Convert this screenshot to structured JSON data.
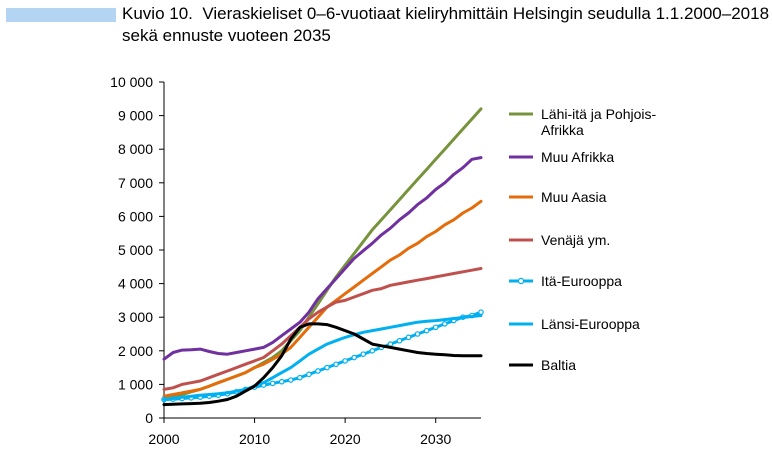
{
  "figure": {
    "label": "Kuvio 10.",
    "title": "Vieraskieliset 0–6-vuotiaat kieliryhmittäin Helsingin seudulla 1.1.2000–2018 sekä ennuste vuoteen 2035",
    "accent_color": "#b3d4f2"
  },
  "chart_data": {
    "type": "line",
    "title": "Vieraskieliset 0–6-vuotiaat kieliryhmittäin Helsingin seudulla 1.1.2000–2018 sekä ennuste vuoteen 2035",
    "xlabel": "",
    "ylabel": "",
    "xlim": [
      2000,
      2035
    ],
    "ylim": [
      0,
      10000
    ],
    "x_ticks": [
      2000,
      2010,
      2020,
      2030
    ],
    "x_tick_labels": [
      "2000",
      "2010",
      "2020",
      "2030"
    ],
    "y_ticks": [
      0,
      1000,
      2000,
      3000,
      4000,
      5000,
      6000,
      7000,
      8000,
      9000,
      10000
    ],
    "y_tick_labels": [
      "0",
      "1 000",
      "2 000",
      "3 000",
      "4 000",
      "5 000",
      "6 000",
      "7 000",
      "8 000",
      "9 000",
      "10 000"
    ],
    "grid": false,
    "legend_position": "right",
    "x": [
      2000,
      2001,
      2002,
      2003,
      2004,
      2005,
      2006,
      2007,
      2008,
      2009,
      2010,
      2011,
      2012,
      2013,
      2014,
      2015,
      2016,
      2017,
      2018,
      2019,
      2020,
      2021,
      2022,
      2023,
      2024,
      2025,
      2026,
      2027,
      2028,
      2029,
      2030,
      2031,
      2032,
      2033,
      2034,
      2035
    ],
    "series": [
      {
        "name": "Lähi-itä ja Pohjois-Afrikka",
        "label_lines": [
          "Lähi-itä ja Pohjois-",
          "Afrikka"
        ],
        "color": "#77933c",
        "marker": "none",
        "values": [
          600,
          650,
          700,
          780,
          850,
          950,
          1050,
          1150,
          1250,
          1350,
          1500,
          1650,
          1800,
          2000,
          2300,
          2600,
          3000,
          3400,
          3800,
          4200,
          4550,
          4900,
          5250,
          5600,
          5900,
          6200,
          6500,
          6800,
          7100,
          7400,
          7700,
          8000,
          8300,
          8600,
          8900,
          9200
        ]
      },
      {
        "name": "Muu Afrikka",
        "color": "#7030a0",
        "marker": "none",
        "values": [
          1750,
          1950,
          2020,
          2030,
          2050,
          1980,
          1920,
          1900,
          1950,
          2000,
          2050,
          2100,
          2250,
          2450,
          2650,
          2850,
          3150,
          3550,
          3850,
          4150,
          4450,
          4750,
          4980,
          5200,
          5450,
          5650,
          5900,
          6100,
          6350,
          6550,
          6800,
          7000,
          7250,
          7450,
          7700,
          7750
        ]
      },
      {
        "name": "Muu Aasia",
        "color": "#e46c0a",
        "marker": "none",
        "values": [
          650,
          700,
          750,
          800,
          850,
          950,
          1050,
          1150,
          1250,
          1350,
          1500,
          1600,
          1750,
          1900,
          2100,
          2400,
          2700,
          3000,
          3300,
          3500,
          3700,
          3900,
          4100,
          4300,
          4500,
          4700,
          4850,
          5050,
          5200,
          5400,
          5550,
          5750,
          5900,
          6100,
          6250,
          6450
        ]
      },
      {
        "name": "Venäjä ym.",
        "color": "#c0504d",
        "marker": "none",
        "values": [
          850,
          900,
          1000,
          1050,
          1100,
          1200,
          1300,
          1400,
          1500,
          1600,
          1700,
          1800,
          2000,
          2200,
          2450,
          2700,
          2950,
          3150,
          3300,
          3450,
          3500,
          3600,
          3700,
          3800,
          3850,
          3950,
          4000,
          4050,
          4100,
          4150,
          4200,
          4250,
          4300,
          4350,
          4400,
          4450
        ]
      },
      {
        "name": "Itä-Eurooppa",
        "color": "#00b0f0",
        "marker": "circle",
        "values": [
          550,
          560,
          580,
          600,
          620,
          650,
          680,
          720,
          780,
          850,
          920,
          980,
          1030,
          1080,
          1130,
          1200,
          1300,
          1400,
          1500,
          1600,
          1700,
          1800,
          1900,
          2000,
          2100,
          2200,
          2300,
          2400,
          2500,
          2600,
          2700,
          2800,
          2900,
          3000,
          3050,
          3150
        ]
      },
      {
        "name": "Länsi-Eurooppa",
        "color": "#00b0f0",
        "marker": "none",
        "values": [
          550,
          580,
          620,
          650,
          680,
          700,
          720,
          750,
          800,
          850,
          950,
          1050,
          1200,
          1350,
          1500,
          1700,
          1900,
          2050,
          2200,
          2300,
          2400,
          2480,
          2550,
          2600,
          2650,
          2700,
          2750,
          2800,
          2850,
          2880,
          2900,
          2930,
          2960,
          2990,
          3020,
          3050
        ]
      },
      {
        "name": "Baltia",
        "color": "#000000",
        "marker": "none",
        "values": [
          400,
          410,
          420,
          430,
          440,
          460,
          500,
          550,
          650,
          800,
          950,
          1200,
          1500,
          1850,
          2350,
          2700,
          2800,
          2800,
          2780,
          2700,
          2600,
          2500,
          2350,
          2200,
          2150,
          2100,
          2050,
          2000,
          1950,
          1920,
          1900,
          1880,
          1860,
          1850,
          1850,
          1850
        ]
      }
    ]
  }
}
